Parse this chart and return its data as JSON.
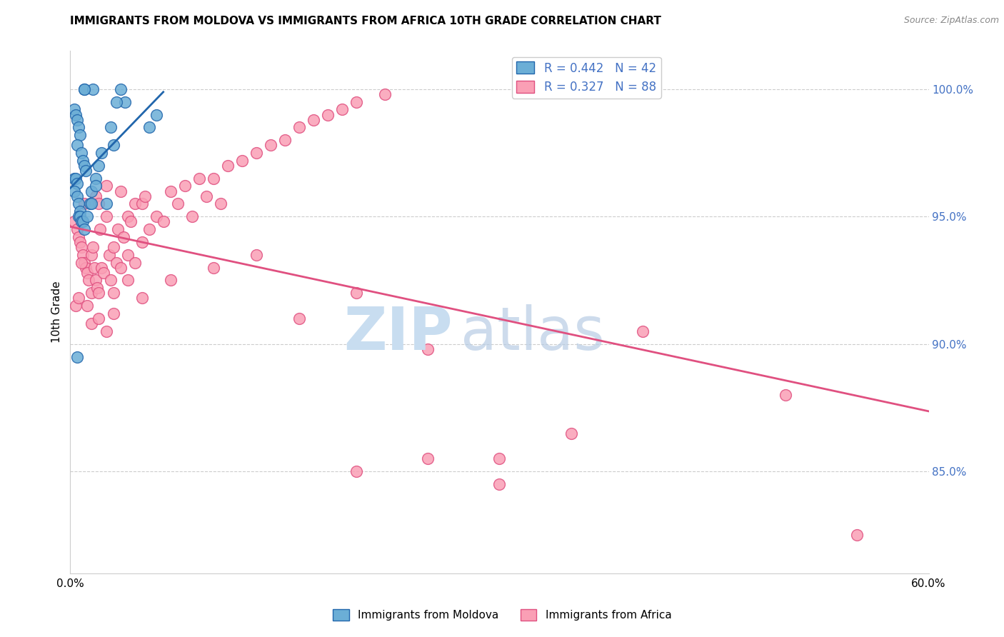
{
  "title": "IMMIGRANTS FROM MOLDOVA VS IMMIGRANTS FROM AFRICA 10TH GRADE CORRELATION CHART",
  "source": "Source: ZipAtlas.com",
  "ylabel": "10th Grade",
  "xlim": [
    0.0,
    60.0
  ],
  "ylim": [
    81.0,
    101.5
  ],
  "ytick_labels": [
    "85.0%",
    "90.0%",
    "95.0%",
    "100.0%"
  ],
  "ytick_values": [
    85.0,
    90.0,
    95.0,
    100.0
  ],
  "xtick_values": [
    0.0,
    10.0,
    20.0,
    30.0,
    40.0,
    50.0,
    60.0
  ],
  "xtick_labels": [
    "0.0%",
    "",
    "",
    "",
    "",
    "",
    "60.0%"
  ],
  "legend_moldova": "Immigrants from Moldova",
  "legend_africa": "Immigrants from Africa",
  "R_moldova": 0.442,
  "N_moldova": 42,
  "R_africa": 0.327,
  "N_africa": 88,
  "color_moldova": "#6baed6",
  "color_africa": "#fa9fb5",
  "color_line_moldova": "#2166ac",
  "color_line_africa": "#e05080",
  "color_text_blue": "#4472c4",
  "color_axis_right": "#4472c4",
  "moldova_x": [
    1.0,
    1.6,
    1.0,
    3.5,
    3.8,
    0.3,
    0.4,
    0.5,
    0.6,
    0.7,
    0.5,
    0.8,
    0.9,
    1.0,
    1.1,
    0.3,
    0.4,
    0.5,
    0.3,
    0.5,
    0.6,
    0.7,
    0.6,
    0.7,
    0.8,
    0.9,
    1.0,
    1.2,
    1.4,
    1.5,
    1.8,
    2.0,
    2.2,
    2.5,
    3.0,
    5.5,
    6.0,
    2.8,
    3.2,
    1.5,
    1.8,
    0.5
  ],
  "moldova_y": [
    100.0,
    100.0,
    100.0,
    100.0,
    99.5,
    99.2,
    99.0,
    98.8,
    98.5,
    98.2,
    97.8,
    97.5,
    97.2,
    97.0,
    96.8,
    96.5,
    96.5,
    96.3,
    96.0,
    95.8,
    95.5,
    95.2,
    95.0,
    95.0,
    94.8,
    94.8,
    94.5,
    95.0,
    95.5,
    96.0,
    96.5,
    97.0,
    97.5,
    95.5,
    97.8,
    98.5,
    99.0,
    98.5,
    99.5,
    95.5,
    96.2,
    89.5
  ],
  "africa_x": [
    0.3,
    0.5,
    0.6,
    0.7,
    0.8,
    0.9,
    1.0,
    1.0,
    1.1,
    1.2,
    1.3,
    1.5,
    1.5,
    1.6,
    1.7,
    1.8,
    1.8,
    1.9,
    2.0,
    2.0,
    2.1,
    2.2,
    2.3,
    2.5,
    2.5,
    2.7,
    2.8,
    3.0,
    3.0,
    3.2,
    3.3,
    3.5,
    3.5,
    3.7,
    4.0,
    4.0,
    4.2,
    4.5,
    4.5,
    5.0,
    5.0,
    5.2,
    5.5,
    6.0,
    6.5,
    7.0,
    7.5,
    8.0,
    8.5,
    9.0,
    9.5,
    10.0,
    10.5,
    11.0,
    12.0,
    13.0,
    14.0,
    15.0,
    16.0,
    17.0,
    18.0,
    19.0,
    20.0,
    22.0,
    0.4,
    0.6,
    0.8,
    1.2,
    1.5,
    2.0,
    2.5,
    3.0,
    4.0,
    5.0,
    7.0,
    10.0,
    13.0,
    16.0,
    20.0,
    25.0,
    30.0,
    35.0,
    40.0,
    50.0,
    55.0,
    20.0,
    25.0,
    30.0
  ],
  "africa_y": [
    94.8,
    94.5,
    94.2,
    94.0,
    93.8,
    93.5,
    93.2,
    95.5,
    93.0,
    92.8,
    92.5,
    93.5,
    92.0,
    93.8,
    93.0,
    92.5,
    95.8,
    92.2,
    92.0,
    95.5,
    94.5,
    93.0,
    92.8,
    96.2,
    95.0,
    93.5,
    92.5,
    93.8,
    92.0,
    93.2,
    94.5,
    96.0,
    93.0,
    94.2,
    95.0,
    93.5,
    94.8,
    95.5,
    93.2,
    95.5,
    94.0,
    95.8,
    94.5,
    95.0,
    94.8,
    96.0,
    95.5,
    96.2,
    95.0,
    96.5,
    95.8,
    96.5,
    95.5,
    97.0,
    97.2,
    97.5,
    97.8,
    98.0,
    98.5,
    98.8,
    99.0,
    99.2,
    99.5,
    99.8,
    91.5,
    91.8,
    93.2,
    91.5,
    90.8,
    91.0,
    90.5,
    91.2,
    92.5,
    91.8,
    92.5,
    93.0,
    93.5,
    91.0,
    92.0,
    89.8,
    85.5,
    86.5,
    90.5,
    88.0,
    82.5,
    85.0,
    85.5,
    84.5
  ]
}
